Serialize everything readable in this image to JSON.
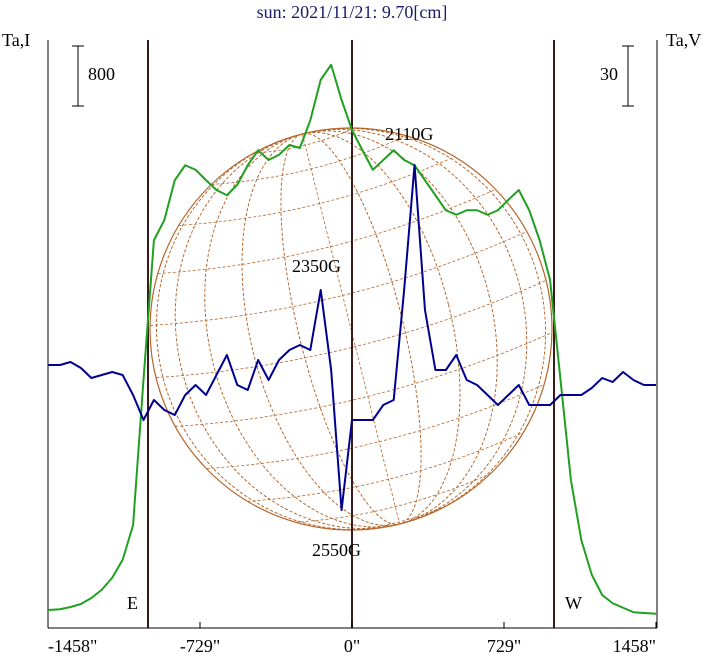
{
  "chart_data": {
    "type": "line",
    "title": "sun: 2021/11/21: 9.70[cm]",
    "y_label": "Ta,I",
    "y2_label": "Ta,V",
    "scale_bars": {
      "y": 800,
      "y2": 30
    },
    "annotations": [
      "2110G",
      "2350G",
      "2550G",
      "E",
      "W"
    ],
    "xlim": [
      -1458,
      1458
    ],
    "xticks": [
      {
        "value": -1458,
        "label": "-1458\""
      },
      {
        "value": -729,
        "label": "-729\""
      },
      {
        "value": 0,
        "label": "0\""
      },
      {
        "value": 729,
        "label": "729\""
      },
      {
        "value": 1458,
        "label": "1458\""
      }
    ],
    "ylim": [
      -200,
      7640
    ],
    "y2lim": [
      -120,
      174
    ],
    "x": [
      -1458,
      -1400,
      -1350,
      -1300,
      -1250,
      -1200,
      -1150,
      -1100,
      -1050,
      -1000,
      -950,
      -900,
      -850,
      -800,
      -750,
      -700,
      -650,
      -600,
      -550,
      -500,
      -450,
      -400,
      -350,
      -300,
      -250,
      -200,
      -150,
      -100,
      -50,
      0,
      50,
      100,
      150,
      200,
      250,
      300,
      350,
      400,
      450,
      500,
      550,
      600,
      650,
      700,
      750,
      800,
      850,
      900,
      950,
      1000,
      1050,
      1100,
      1150,
      1200,
      1250,
      1300,
      1350,
      1400,
      1458
    ],
    "series": [
      {
        "color": "#20a020",
        "axis": "y",
        "values": [
          40,
          50,
          80,
          120,
          200,
          310,
          470,
          710,
          1170,
          3110,
          4970,
          5240,
          5770,
          5970,
          5910,
          5770,
          5640,
          5570,
          5710,
          5970,
          6170,
          6040,
          6110,
          6240,
          6200,
          6570,
          7110,
          7310,
          6840,
          6440,
          6170,
          5910,
          6040,
          6170,
          6040,
          5970,
          5770,
          5570,
          5370,
          5310,
          5370,
          5370,
          5310,
          5370,
          5510,
          5640,
          5370,
          4970,
          4440,
          3110,
          1770,
          970,
          510,
          240,
          130,
          70,
          10,
          0,
          -10
        ]
      },
      {
        "color": "#000090",
        "axis": "y2",
        "values": [
          11.5,
          11.5,
          13,
          10,
          5,
          6.5,
          8,
          6.5,
          -3.5,
          -16,
          -6,
          -11,
          -13.5,
          -3.5,
          1.5,
          -3.5,
          6.5,
          16.5,
          1.5,
          -1,
          14,
          4,
          14,
          19,
          21.5,
          19,
          49,
          9,
          -61,
          -16,
          -16,
          -16,
          -8.5,
          -6,
          49,
          111.5,
          39,
          9,
          9,
          16.5,
          4,
          1.5,
          -3.5,
          -8.5,
          -3.5,
          1.5,
          -8.5,
          -8.5,
          -8.5,
          -3.5,
          -3.5,
          -3.5,
          0,
          5,
          3,
          8,
          4,
          1.5,
          1.5
        ]
      }
    ]
  }
}
